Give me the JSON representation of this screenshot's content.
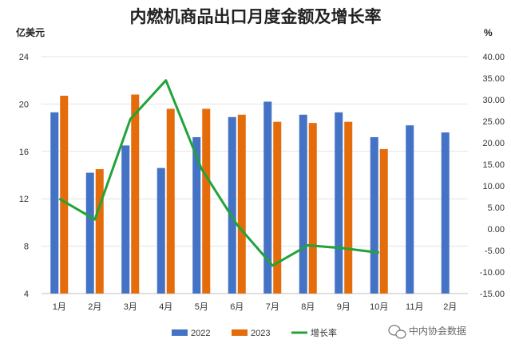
{
  "chart_data": {
    "type": "bar",
    "title": "内燃机商品出口月度金额及增长率",
    "left_unit": "亿美元",
    "right_unit": "%",
    "categories": [
      "1月",
      "2月",
      "3月",
      "4月",
      "5月",
      "6月",
      "7月",
      "8月",
      "9月",
      "10月",
      "11月",
      "2月"
    ],
    "series": [
      {
        "name": "2022",
        "type": "bar",
        "axis": "left",
        "color": "#4472C4",
        "values": [
          19.3,
          14.2,
          16.5,
          14.6,
          17.2,
          18.9,
          20.2,
          19.1,
          19.3,
          17.2,
          18.2,
          17.6
        ]
      },
      {
        "name": "2023",
        "type": "bar",
        "axis": "left",
        "color": "#E46C0A",
        "values": [
          20.7,
          14.5,
          20.8,
          19.6,
          19.6,
          19.1,
          18.5,
          18.4,
          18.5,
          16.2,
          null,
          null
        ]
      },
      {
        "name": "增长率",
        "type": "line",
        "axis": "right",
        "color": "#22A33A",
        "values": [
          7.0,
          2.2,
          25.5,
          34.5,
          14.0,
          1.0,
          -8.5,
          -3.8,
          -4.5,
          -5.5,
          null,
          null
        ]
      }
    ],
    "y_left": {
      "min": 4,
      "max": 24,
      "ticks": [
        "24",
        "20",
        "16",
        "12",
        "8",
        "4"
      ]
    },
    "y_right": {
      "min": -15,
      "max": 40,
      "ticks": [
        "40.00",
        "35.00",
        "30.00",
        "25.00",
        "20.00",
        "15.00",
        "10.00",
        "5.00",
        "0.00",
        "-5.00",
        "-10.00",
        "-15.00"
      ]
    },
    "grid": true,
    "legend_position": "bottom"
  },
  "watermark": "中内协会数据",
  "watermark_icon": "wechat-icon"
}
